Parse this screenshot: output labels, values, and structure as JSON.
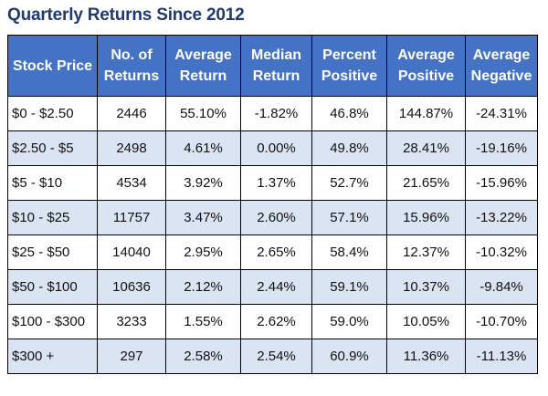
{
  "chart_data": {
    "type": "table",
    "title": "Quarterly Returns Since 2012",
    "columns": [
      [
        "Stock Price"
      ],
      [
        "No. of",
        "Returns"
      ],
      [
        "Average",
        "Return"
      ],
      [
        "Median",
        "Return"
      ],
      [
        "Percent",
        "Positive"
      ],
      [
        "Average",
        "Positive"
      ],
      [
        "Average",
        "Negative"
      ]
    ],
    "rows": [
      [
        "$0 - $2.50",
        "2446",
        "55.10%",
        "-1.82%",
        "46.8%",
        "144.87%",
        "-24.31%"
      ],
      [
        "$2.50 - $5",
        "2498",
        "4.61%",
        "0.00%",
        "49.8%",
        "28.41%",
        "-19.16%"
      ],
      [
        "$5 - $10",
        "4534",
        "3.92%",
        "1.37%",
        "52.7%",
        "21.65%",
        "-15.96%"
      ],
      [
        "$10 - $25",
        "11757",
        "3.47%",
        "2.60%",
        "57.1%",
        "15.96%",
        "-13.22%"
      ],
      [
        "$25 - $50",
        "14040",
        "2.95%",
        "2.65%",
        "58.4%",
        "12.37%",
        "-10.32%"
      ],
      [
        "$50 - $100",
        "10636",
        "2.12%",
        "2.44%",
        "59.1%",
        "10.37%",
        "-9.84%"
      ],
      [
        "$100 - $300",
        "3233",
        "1.55%",
        "2.62%",
        "59.0%",
        "10.05%",
        "-10.70%"
      ],
      [
        "$300 +",
        "297",
        "2.58%",
        "2.54%",
        "60.9%",
        "11.36%",
        "-11.13%"
      ]
    ],
    "colors": {
      "title": "#1f3a73",
      "header_bg": "#4472c4",
      "header_text": "#ffffff",
      "band_row_bg": "#dbe4f2",
      "row_bg": "#ffffff",
      "border": "#000000"
    }
  }
}
